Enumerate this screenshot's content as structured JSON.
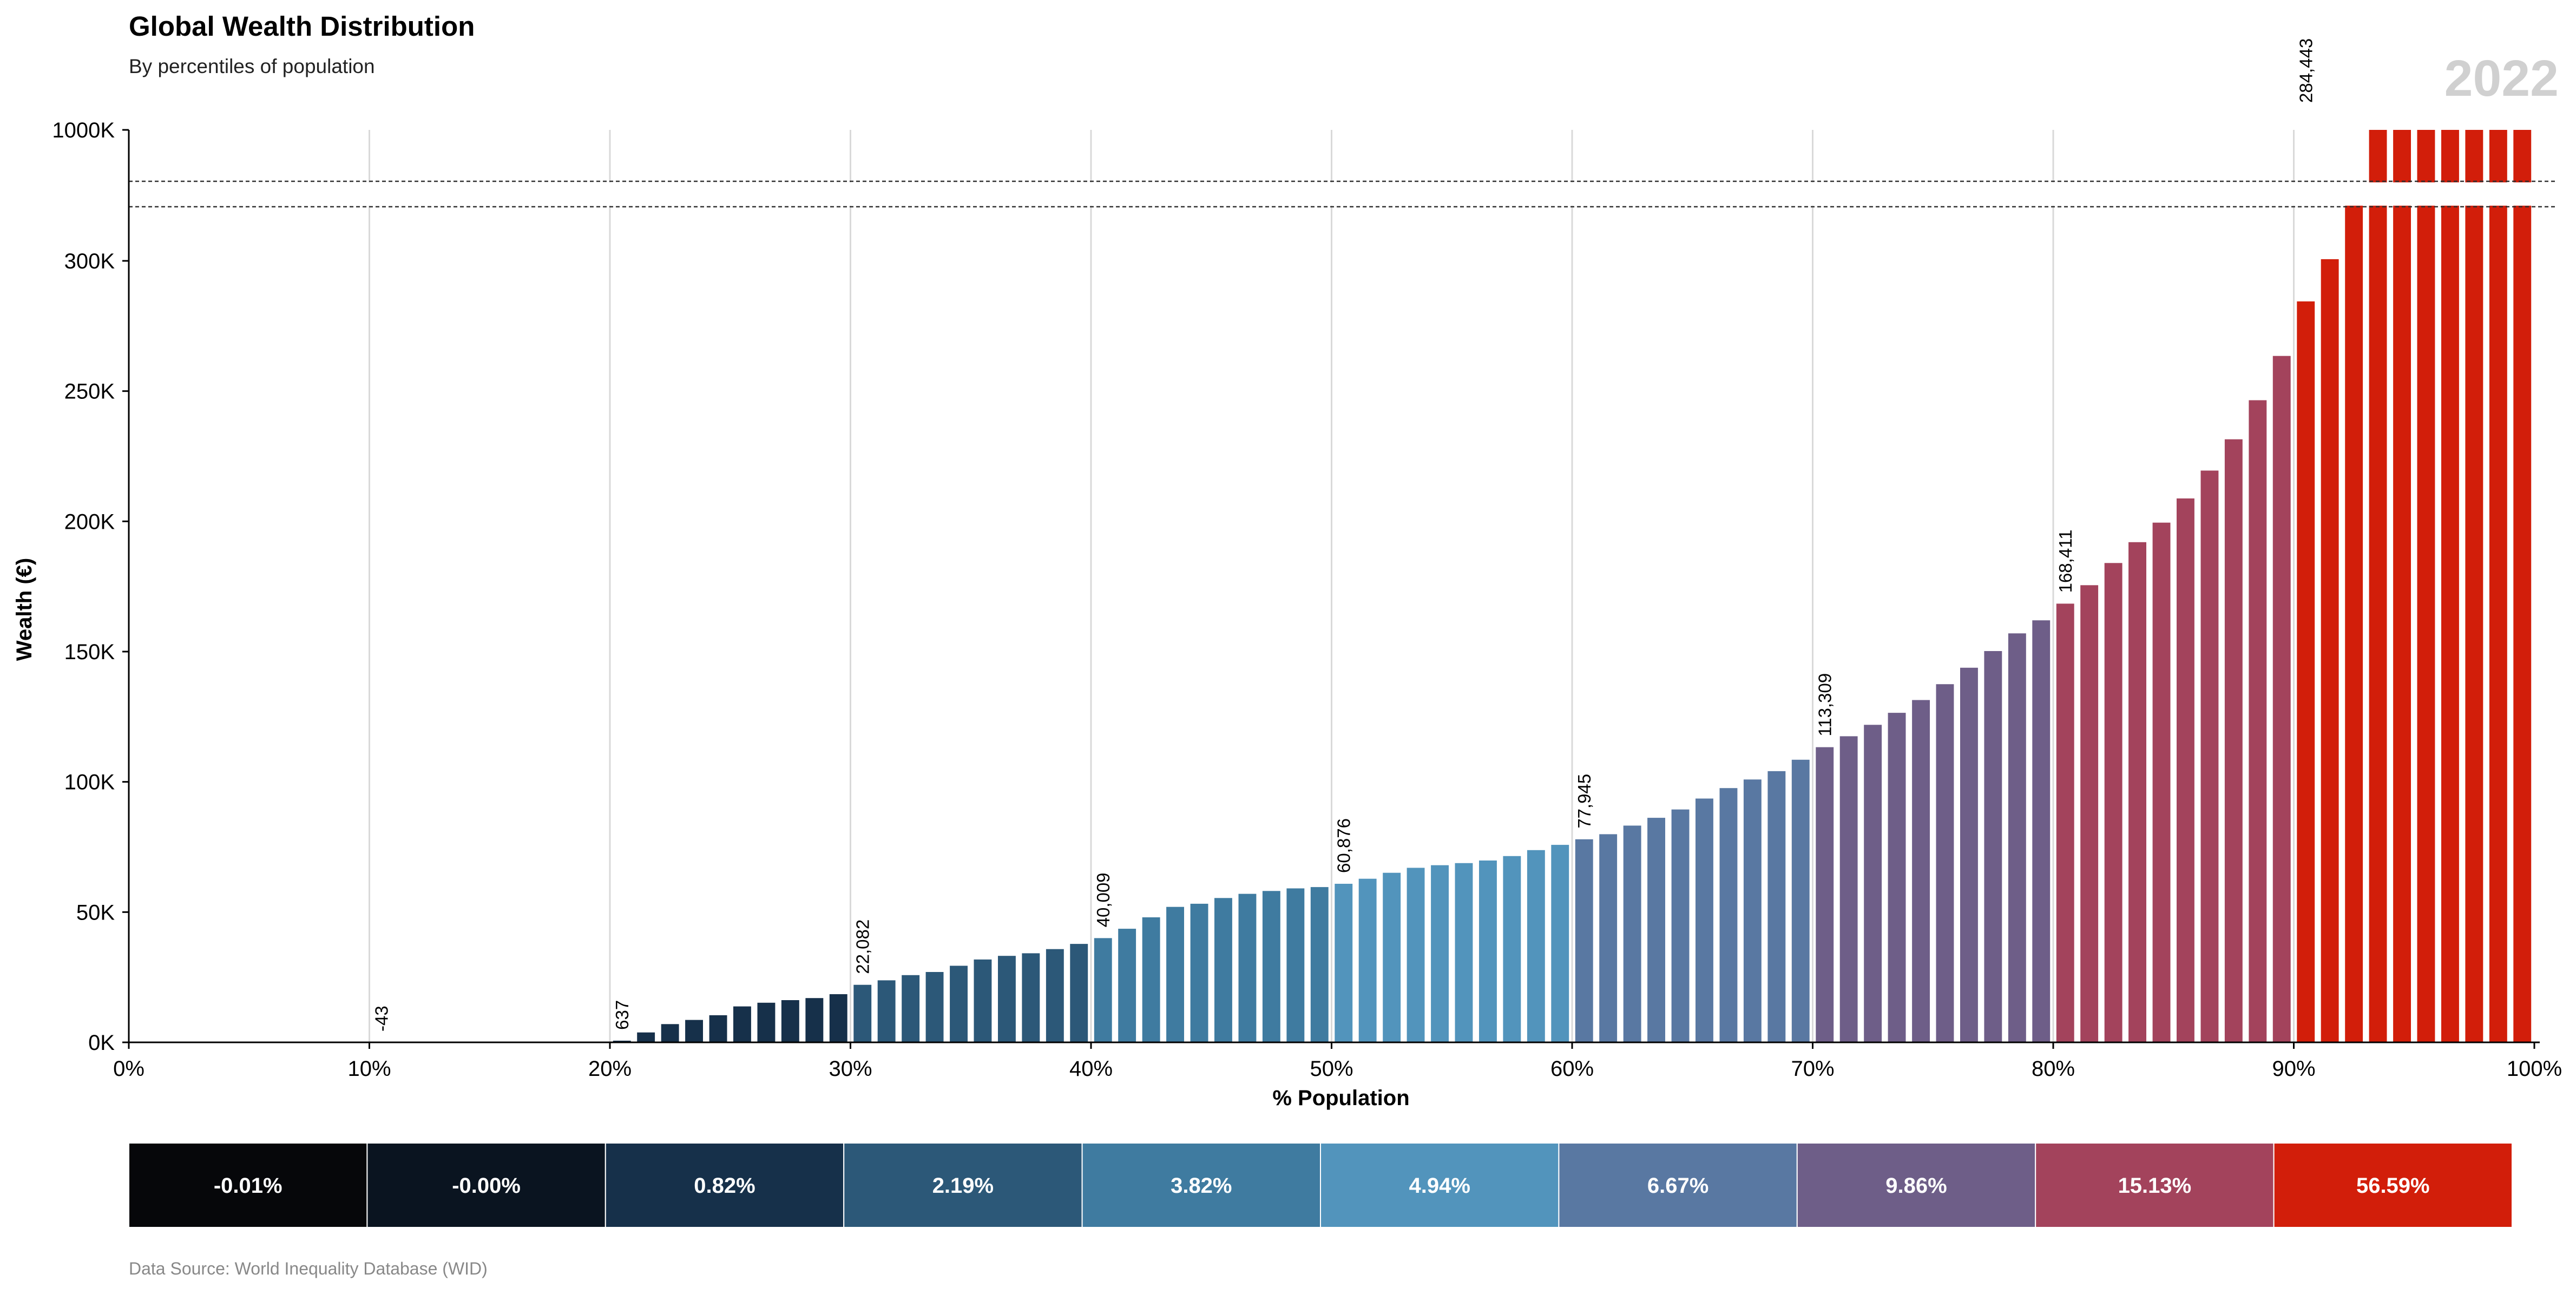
{
  "title": "Global Wealth Distribution",
  "subtitle": "By percentiles of population",
  "year": "2022",
  "source": "Data Source: World Inequality Database (WID)",
  "chart_data": {
    "type": "bar",
    "xlabel": "% Population",
    "ylabel": "Wealth (€)",
    "x_ticks": [
      "0%",
      "10%",
      "20%",
      "30%",
      "40%",
      "50%",
      "60%",
      "70%",
      "80%",
      "90%",
      "100%"
    ],
    "y_ticks": [
      {
        "label": "0K",
        "value": 0
      },
      {
        "label": "50K",
        "value": 50000
      },
      {
        "label": "100K",
        "value": 100000
      },
      {
        "label": "150K",
        "value": 150000
      },
      {
        "label": "200K",
        "value": 200000
      },
      {
        "label": "250K",
        "value": 250000
      },
      {
        "label": "300K",
        "value": 300000
      },
      {
        "label": "1000K",
        "value": 1000000
      }
    ],
    "axis_break": {
      "from": 300000,
      "to": 1000000,
      "note": "broken y-axis between 300K and 1000K (dashed lines)"
    },
    "grid": "vertical",
    "bar_width_pct": 1,
    "percentiles": [
      1,
      2,
      3,
      4,
      5,
      6,
      7,
      8,
      9,
      10,
      11,
      12,
      13,
      14,
      15,
      16,
      17,
      18,
      19,
      20,
      21,
      22,
      23,
      24,
      25,
      26,
      27,
      28,
      29,
      30,
      31,
      32,
      33,
      34,
      35,
      36,
      37,
      38,
      39,
      40,
      41,
      42,
      43,
      44,
      45,
      46,
      47,
      48,
      49,
      50,
      51,
      52,
      53,
      54,
      55,
      56,
      57,
      58,
      59,
      60,
      61,
      62,
      63,
      64,
      65,
      66,
      67,
      68,
      69,
      70,
      71,
      72,
      73,
      74,
      75,
      76,
      77,
      78,
      79,
      80,
      81,
      82,
      83,
      84,
      85,
      86,
      87,
      88,
      89,
      90,
      91,
      92,
      93,
      94,
      95,
      96,
      97,
      98,
      99,
      100
    ],
    "values": [
      0,
      0,
      0,
      0,
      0,
      0,
      0,
      0,
      0,
      0,
      -43,
      0,
      0,
      0,
      0,
      0,
      0,
      0,
      0,
      0,
      637,
      3800,
      7000,
      8600,
      10400,
      13800,
      15200,
      16200,
      17000,
      18500,
      22082,
      23800,
      25800,
      27000,
      29400,
      31800,
      33200,
      34200,
      35800,
      37800,
      40009,
      43600,
      48000,
      52000,
      53200,
      55400,
      57000,
      58100,
      59100,
      59600,
      60876,
      62800,
      65100,
      67000,
      68000,
      68800,
      69800,
      71500,
      73800,
      75800,
      77945,
      79900,
      83200,
      86200,
      89400,
      93600,
      97600,
      100900,
      104100,
      108500,
      113309,
      117500,
      121900,
      126500,
      131400,
      137500,
      143800,
      150200,
      157000,
      162000,
      168411,
      175500,
      184000,
      192000,
      199500,
      208800,
      219500,
      231500,
      246500,
      263500,
      284443,
      309000,
      600000,
      1000000,
      1000000,
      1000000,
      1000000,
      1000000,
      1000000,
      1000000
    ],
    "annotations": [
      {
        "percentile": 11,
        "text": "-43"
      },
      {
        "percentile": 21,
        "text": "637"
      },
      {
        "percentile": 31,
        "text": "22,082"
      },
      {
        "percentile": 41,
        "text": "40,009"
      },
      {
        "percentile": 51,
        "text": "60,876"
      },
      {
        "percentile": 61,
        "text": "77,945"
      },
      {
        "percentile": 71,
        "text": "113,309"
      },
      {
        "percentile": 81,
        "text": "168,411"
      },
      {
        "percentile": 91,
        "text": "284,443"
      }
    ],
    "decile_colors": [
      "#06070a",
      "#0a1420",
      "#16304a",
      "#2c5878",
      "#3f7ba0",
      "#5294bc",
      "#5978a2",
      "#6e5e88",
      "#a3435c",
      "#d21e0a"
    ],
    "decile_shares": [
      "-0.01%",
      "-0.00%",
      "0.82%",
      "2.19%",
      "3.82%",
      "4.94%",
      "6.67%",
      "9.86%",
      "15.13%",
      "56.59%"
    ]
  }
}
